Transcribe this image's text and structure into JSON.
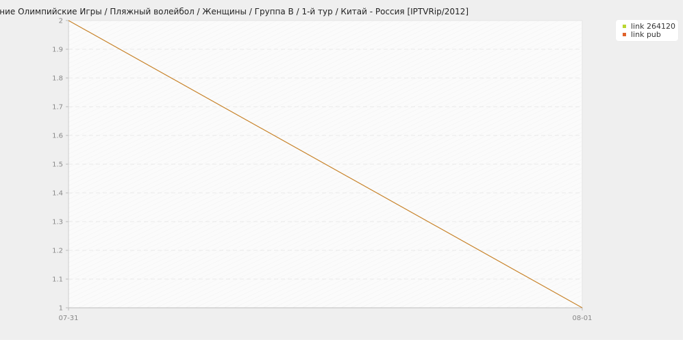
{
  "chart_data": {
    "type": "line",
    "title": "...ние Олимпийские Игры / Пляжный волейбол / Женщины / Группа B / 1-й тур / Китай - Россия [IPTVRip/2012]",
    "x": [
      "07-31",
      "08-01"
    ],
    "series": [
      {
        "name": "link 264120",
        "values": [
          2,
          1
        ],
        "color": "#c8832a",
        "legend_color": "#b9d630"
      },
      {
        "name": "link pub",
        "values": [
          null,
          null
        ],
        "color": "#e0622a",
        "legend_color": "#e0622a"
      }
    ],
    "ylim": [
      1,
      2
    ],
    "yticks": [
      1,
      1.1,
      1.2,
      1.3,
      1.4,
      1.5,
      1.6,
      1.7,
      1.8,
      1.9,
      2
    ],
    "ytick_labels": [
      "1",
      "1.1",
      "1.2",
      "1.3",
      "1.4",
      "1.5",
      "1.6",
      "1.7",
      "1.8",
      "1.9",
      "2"
    ],
    "xlabel": "",
    "ylabel": "",
    "grid": true,
    "legend_position": "top-right"
  }
}
